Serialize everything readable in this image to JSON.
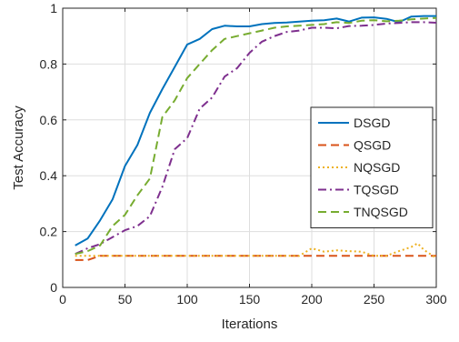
{
  "chart_data": {
    "type": "line",
    "title": "",
    "xlabel": "Iterations",
    "ylabel": "Test Accuracy",
    "xlim": [
      0,
      300
    ],
    "ylim": [
      0,
      1
    ],
    "xticks": [
      "0",
      "50",
      "100",
      "150",
      "200",
      "250",
      "300"
    ],
    "yticks": [
      "0",
      "0.2",
      "0.4",
      "0.6",
      "0.8",
      "1"
    ],
    "grid": true,
    "legend_position": "right-middle",
    "series": [
      {
        "name": "DSGD",
        "color": "#0072BD",
        "dash": "solid",
        "x": [
          10,
          20,
          30,
          40,
          50,
          60,
          70,
          80,
          90,
          100,
          110,
          120,
          130,
          140,
          150,
          160,
          170,
          180,
          190,
          200,
          210,
          220,
          230,
          240,
          250,
          260,
          270,
          280,
          290,
          300
        ],
        "values": [
          0.15,
          0.175,
          0.24,
          0.315,
          0.435,
          0.51,
          0.625,
          0.71,
          0.79,
          0.87,
          0.89,
          0.925,
          0.937,
          0.935,
          0.935,
          0.943,
          0.947,
          0.949,
          0.952,
          0.955,
          0.957,
          0.963,
          0.952,
          0.966,
          0.967,
          0.962,
          0.95,
          0.97,
          0.972,
          0.972
        ]
      },
      {
        "name": "QSGD",
        "color": "#D95319",
        "dash": "dashed",
        "x": [
          10,
          20,
          30,
          300
        ],
        "values": [
          0.098,
          0.098,
          0.113,
          0.113
        ]
      },
      {
        "name": "NQSGD",
        "color": "#EDB120",
        "dash": "dotted",
        "x": [
          10,
          50,
          100,
          150,
          190,
          200,
          210,
          220,
          230,
          240,
          250,
          260,
          270,
          280,
          285,
          290,
          300
        ],
        "values": [
          0.113,
          0.113,
          0.113,
          0.113,
          0.113,
          0.14,
          0.128,
          0.133,
          0.13,
          0.128,
          0.113,
          0.113,
          0.13,
          0.145,
          0.158,
          0.135,
          0.105
        ]
      },
      {
        "name": "TQSGD",
        "color": "#7E2F8E",
        "dash": "dashdot",
        "x": [
          10,
          20,
          30,
          40,
          50,
          60,
          70,
          80,
          90,
          100,
          110,
          120,
          130,
          140,
          150,
          160,
          170,
          180,
          190,
          200,
          210,
          220,
          230,
          240,
          250,
          260,
          270,
          280,
          290,
          300
        ],
        "values": [
          0.12,
          0.14,
          0.155,
          0.18,
          0.205,
          0.22,
          0.255,
          0.36,
          0.495,
          0.535,
          0.64,
          0.68,
          0.755,
          0.785,
          0.84,
          0.88,
          0.9,
          0.915,
          0.92,
          0.93,
          0.93,
          0.928,
          0.936,
          0.937,
          0.94,
          0.945,
          0.947,
          0.95,
          0.95,
          0.948
        ]
      },
      {
        "name": "TNQSGD",
        "color": "#77AC30",
        "dash": "dashed",
        "x": [
          10,
          20,
          30,
          40,
          50,
          60,
          70,
          80,
          90,
          100,
          110,
          120,
          130,
          140,
          150,
          160,
          170,
          180,
          190,
          200,
          210,
          220,
          230,
          240,
          250,
          260,
          270,
          280,
          290,
          300
        ],
        "values": [
          0.12,
          0.13,
          0.15,
          0.22,
          0.26,
          0.33,
          0.39,
          0.61,
          0.67,
          0.75,
          0.8,
          0.85,
          0.89,
          0.9,
          0.91,
          0.92,
          0.93,
          0.935,
          0.937,
          0.94,
          0.943,
          0.95,
          0.947,
          0.955,
          0.957,
          0.953,
          0.955,
          0.96,
          0.963,
          0.965
        ]
      }
    ]
  }
}
